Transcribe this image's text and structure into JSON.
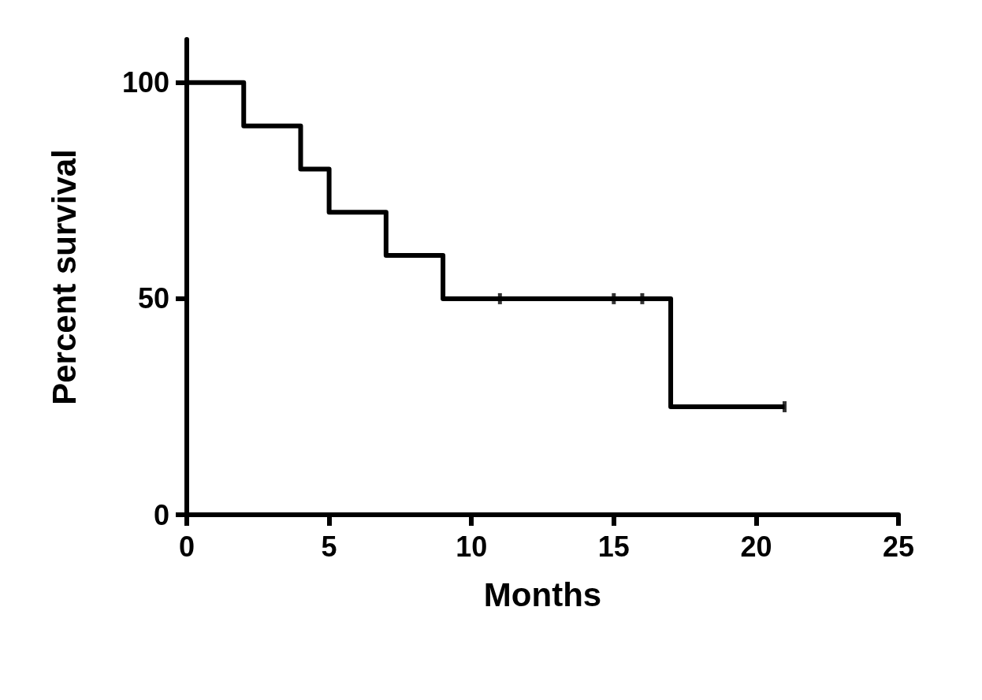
{
  "chart_data": {
    "type": "step",
    "xlabel": "Months",
    "ylabel": "Percent survival",
    "xlim": [
      0,
      25
    ],
    "xticks": [
      0,
      5,
      10,
      15,
      20,
      25
    ],
    "ylim": [
      0,
      110
    ],
    "yticks": [
      0,
      50,
      100
    ],
    "grid": false,
    "marker": "none",
    "line_style": "solid",
    "series": [
      {
        "color": "#000000",
        "x": [
          0,
          2,
          4,
          5,
          7,
          9,
          17,
          21
        ],
        "values": [
          100,
          90,
          80,
          70,
          60,
          50,
          25,
          25
        ]
      },
      {
        "type": "scatter",
        "marker": "square",
        "color": "#000000",
        "x": [
          11,
          15,
          16,
          21
        ],
        "values": [
          50,
          50,
          50,
          25
        ]
      }
    ]
  }
}
